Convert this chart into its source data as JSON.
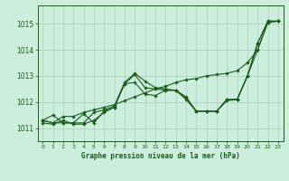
{
  "title": "Graphe pression niveau de la mer (hPa)",
  "background_color": "#cceedd",
  "plot_bg_color": "#cceedd",
  "grid_color": "#aaccbb",
  "line_color": "#1a5c1a",
  "xlim": [
    -0.5,
    23.5
  ],
  "ylim": [
    1010.5,
    1015.7
  ],
  "yticks": [
    1011,
    1012,
    1013,
    1014,
    1015
  ],
  "xticks": [
    0,
    1,
    2,
    3,
    4,
    5,
    6,
    7,
    8,
    9,
    10,
    11,
    12,
    13,
    14,
    15,
    16,
    17,
    18,
    19,
    20,
    21,
    22,
    23
  ],
  "series": [
    [
      1011.3,
      1011.5,
      1011.2,
      1011.2,
      1011.2,
      1011.6,
      1011.7,
      1011.85,
      1012.75,
      1013.1,
      1012.8,
      1012.55,
      1012.5,
      1012.45,
      1012.2,
      1011.65,
      1011.65,
      1011.65,
      1012.1,
      1012.1,
      1013.0,
      1014.25,
      1015.1,
      1015.1
    ],
    [
      1011.2,
      1011.15,
      1011.3,
      1011.15,
      1011.15,
      1011.3,
      1011.6,
      1011.8,
      1012.7,
      1012.75,
      1012.3,
      1012.25,
      1012.45,
      1012.45,
      1012.15,
      1011.65,
      1011.65,
      1011.65,
      1012.05,
      1012.1,
      1013.0,
      1014.0,
      1015.05,
      1015.1
    ],
    [
      1011.3,
      1011.2,
      1011.2,
      1011.2,
      1011.55,
      1011.2,
      1011.65,
      1011.8,
      1012.7,
      1013.05,
      1012.55,
      1012.5,
      1012.45,
      1012.45,
      1012.1,
      1011.65,
      1011.65,
      1011.65,
      1012.1,
      1012.1,
      1013.0,
      1014.25,
      1015.1,
      1015.1
    ],
    [
      1011.3,
      1011.2,
      1011.45,
      1011.45,
      1011.6,
      1011.7,
      1011.8,
      1011.9,
      1012.05,
      1012.2,
      1012.35,
      1012.5,
      1012.6,
      1012.75,
      1012.85,
      1012.9,
      1013.0,
      1013.05,
      1013.1,
      1013.2,
      1013.5,
      1014.0,
      1015.05,
      1015.1
    ]
  ]
}
